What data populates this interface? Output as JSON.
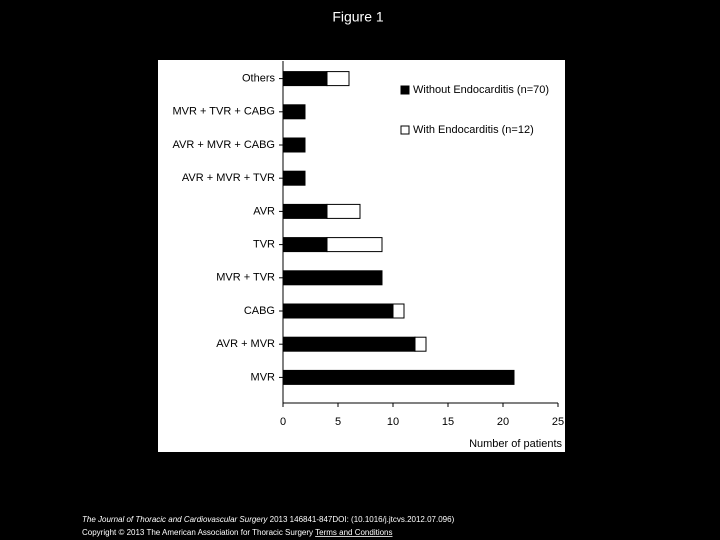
{
  "header": {
    "title": "Figure 1"
  },
  "chart_data": {
    "type": "bar",
    "orientation": "horizontal",
    "stacked": true,
    "categories": [
      "Others",
      "MVR + TVR + CABG",
      "AVR + MVR + CABG",
      "AVR + MVR + TVR",
      "AVR",
      "TVR",
      "MVR + TVR",
      "CABG",
      "AVR + MVR",
      "MVR"
    ],
    "series": [
      {
        "name": "Without Endocarditis (n=70)",
        "color": "#000000",
        "values": [
          4,
          2,
          2,
          2,
          4,
          4,
          9,
          10,
          12,
          21
        ]
      },
      {
        "name": "With Endocarditis (n=12)",
        "color": "#ffffff",
        "values": [
          2,
          0,
          0,
          0,
          3,
          5,
          0,
          1,
          1,
          0
        ]
      }
    ],
    "xlabel": "Number of patients",
    "xlim": [
      0,
      25
    ],
    "xticks": [
      0,
      5,
      10,
      15,
      20,
      25
    ],
    "grid": false,
    "legend": "upper right"
  },
  "footer": {
    "journal": "The Journal of Thoracic and Cardiovascular Surgery",
    "citation": "2013 146841-847DOI: (10.1016/j.jtcvs.2012.07.096)",
    "copyright": "Copyright © 2013 The American Association for Thoracic Surgery",
    "link": "Terms and Conditions"
  }
}
